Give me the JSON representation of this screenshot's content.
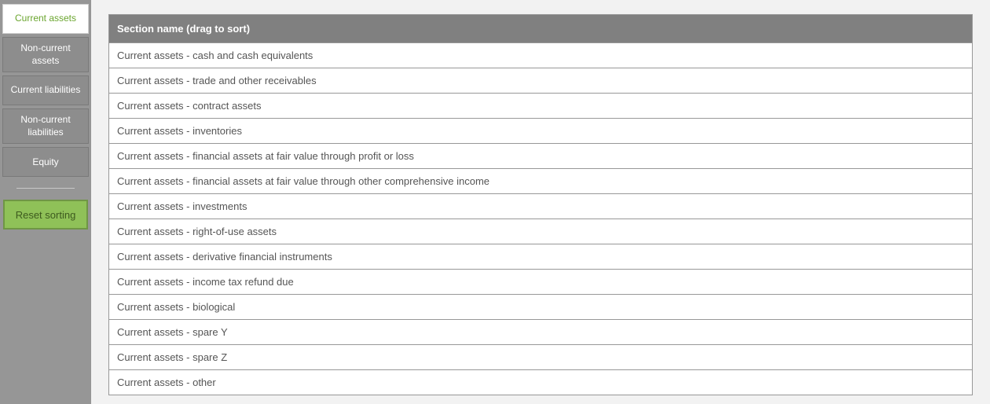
{
  "sidebar": {
    "tabs": [
      {
        "label": "Current assets",
        "active": true
      },
      {
        "label": "Non-current assets",
        "active": false
      },
      {
        "label": "Current liabilities",
        "active": false
      },
      {
        "label": "Non-current liabilities",
        "active": false
      },
      {
        "label": "Equity",
        "active": false
      }
    ],
    "reset_label": "Reset sorting"
  },
  "table": {
    "header": "Section name (drag to sort)",
    "rows": [
      "Current assets - cash and cash equivalents",
      "Current assets - trade and other receivables",
      "Current assets - contract assets",
      "Current assets - inventories",
      "Current assets - financial assets at fair value through profit or loss",
      "Current assets - financial assets at fair value through other comprehensive income",
      "Current assets - investments",
      "Current assets - right-of-use assets",
      "Current assets - derivative financial instruments",
      "Current assets - income tax refund due",
      "Current assets - biological",
      "Current assets - spare Y",
      "Current assets - spare Z",
      "Current assets - other"
    ]
  },
  "colors": {
    "page_bg": "#f2f2f2",
    "sidebar_bg": "#969696",
    "tab_bg": "#8d8d8d",
    "tab_active_bg": "#ffffff",
    "tab_active_text": "#6aa52e",
    "reset_bg": "#8fc158",
    "reset_border": "#6f9645",
    "header_bg": "#808080",
    "border": "#989898",
    "row_bg": "#ffffff",
    "text": "#555555"
  }
}
